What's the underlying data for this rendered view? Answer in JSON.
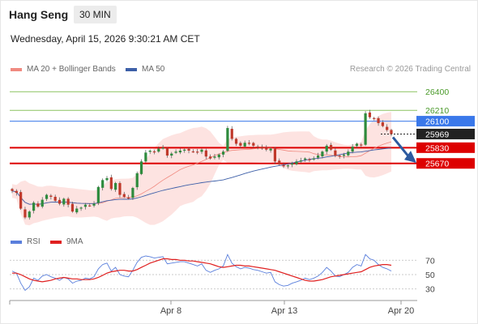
{
  "header": {
    "instrument": "Hang Seng",
    "timeframe": "30 MIN",
    "datetime": "Wednesday, April 15, 2026 9:30:21 AM CET",
    "credit": "Research © 2026 Trading Central"
  },
  "legend": {
    "ma20_label": "MA 20 + Bollinger Bands",
    "ma50_label": "MA 50",
    "rsi_label": "RSI",
    "rsi_ma_label": "9MA"
  },
  "colors": {
    "ma20": "#f08a80",
    "ma50": "#3d5fa8",
    "bollinger_fill": "#fde3e1",
    "resistance": "#8cc360",
    "pivot": "#3a78ea",
    "support": "#dd0000",
    "last_price": "#222222",
    "bull": "#2e8b3d",
    "bear": "#c0392b",
    "rsi": "#5a7fdc",
    "rsi_ma": "#e02020",
    "arrow": "#2c5aa0"
  },
  "chart_data": [
    {
      "type": "candlestick",
      "title": "Hang Seng",
      "timeframe": "30 MIN",
      "x_labels": [
        "Apr 8",
        "Apr 13",
        "Apr 20"
      ],
      "ylim": [
        25000,
        26550
      ],
      "levels": [
        {
          "value": 26400,
          "label": "26400",
          "kind": "resistance"
        },
        {
          "value": 26210,
          "label": "26210",
          "kind": "resistance"
        },
        {
          "value": 26100,
          "label": "26100",
          "kind": "pivot"
        },
        {
          "value": 25969,
          "label": "25969",
          "kind": "last"
        },
        {
          "value": 25830,
          "label": "25830",
          "kind": "support"
        },
        {
          "value": 25670,
          "label": "25670",
          "kind": "support"
        }
      ],
      "series": [
        {
          "name": "MA 20 + Bollinger Bands",
          "style": "line+band"
        },
        {
          "name": "MA 50",
          "style": "line"
        }
      ],
      "closes": [
        25390,
        25370,
        25210,
        25120,
        25180,
        25270,
        25230,
        25300,
        25350,
        25330,
        25290,
        25260,
        25310,
        25250,
        25180,
        25210,
        25220,
        25250,
        25240,
        25260,
        25430,
        25500,
        25520,
        25410,
        25470,
        25350,
        25330,
        25320,
        25420,
        25570,
        25690,
        25780,
        25800,
        25790,
        25820,
        25830,
        25750,
        25770,
        25790,
        25800,
        25810,
        25800,
        25790,
        25780,
        25810,
        25740,
        25720,
        25740,
        25760,
        25790,
        26030,
        25920,
        25870,
        25850,
        25880,
        25870,
        25850,
        25840,
        25820,
        25810,
        25820,
        25690,
        25660,
        25640,
        25650,
        25670,
        25690,
        25700,
        25720,
        25710,
        25720,
        25750,
        25790,
        25850,
        25810,
        25750,
        25740,
        25760,
        25790,
        25840,
        25870,
        25860,
        26180,
        26140,
        26130,
        26080,
        26050,
        26010,
        25969
      ],
      "arrow_direction": "down"
    },
    {
      "type": "line",
      "title": "RSI",
      "y_ticks": [
        70,
        50,
        30
      ],
      "ylim": [
        15,
        85
      ],
      "series": [
        {
          "name": "RSI"
        },
        {
          "name": "9MA"
        }
      ],
      "rsi": [
        55,
        52,
        38,
        28,
        33,
        45,
        42,
        48,
        50,
        47,
        45,
        42,
        46,
        44,
        38,
        41,
        42,
        45,
        44,
        47,
        58,
        64,
        66,
        55,
        60,
        50,
        48,
        47,
        56,
        67,
        74,
        76,
        75,
        73,
        74,
        75,
        65,
        66,
        67,
        68,
        68,
        66,
        64,
        62,
        65,
        56,
        53,
        56,
        58,
        62,
        78,
        66,
        61,
        58,
        60,
        59,
        57,
        56,
        54,
        52,
        53,
        40,
        36,
        34,
        35,
        38,
        40,
        42,
        45,
        43,
        45,
        48,
        53,
        60,
        55,
        48,
        47,
        50,
        53,
        60,
        64,
        62,
        78,
        72,
        70,
        64,
        60,
        58,
        55
      ],
      "ma9": [
        52,
        52,
        50,
        47,
        44,
        42,
        41,
        40,
        41,
        42,
        44,
        45,
        46,
        45,
        44,
        44,
        43,
        43,
        43,
        44,
        46,
        49,
        52,
        54,
        55,
        56,
        56,
        55,
        55,
        57,
        60,
        63,
        66,
        68,
        70,
        72,
        72,
        71,
        71,
        70,
        70,
        69,
        69,
        68,
        67,
        66,
        65,
        63,
        61,
        60,
        61,
        62,
        63,
        63,
        62,
        62,
        61,
        60,
        59,
        58,
        57,
        56,
        54,
        52,
        50,
        48,
        46,
        44,
        42,
        41,
        41,
        42,
        43,
        45,
        47,
        48,
        49,
        50,
        51,
        52,
        53,
        54,
        57,
        60,
        62,
        63,
        64,
        64,
        63
      ],
      "x_labels": [
        "Apr 8",
        "Apr 13",
        "Apr 20"
      ]
    }
  ]
}
